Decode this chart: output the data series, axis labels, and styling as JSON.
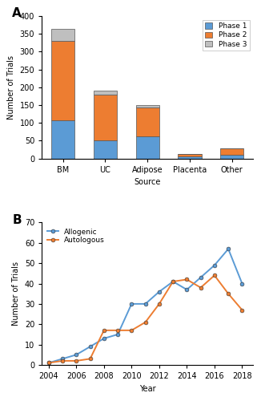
{
  "bar_categories": [
    "BM",
    "UC",
    "Adipose",
    "Placenta",
    "Other"
  ],
  "phase1": [
    108,
    50,
    62,
    5,
    10
  ],
  "phase2": [
    222,
    130,
    82,
    7,
    18
  ],
  "phase3": [
    35,
    10,
    7,
    1,
    0
  ],
  "color_phase1": "#5B9BD5",
  "color_phase2": "#ED7D31",
  "color_phase3": "#BFBFBF",
  "bar_edge_color": "#555555",
  "bar_width": 0.55,
  "ax_ylabel_bar": "Number of Trials",
  "ax_xlabel_bar": "Source",
  "years": [
    2004,
    2005,
    2006,
    2007,
    2008,
    2009,
    2010,
    2011,
    2012,
    2013,
    2014,
    2015,
    2016,
    2017,
    2018
  ],
  "allogenic": [
    1,
    3,
    5,
    9,
    13,
    15,
    30,
    30,
    36,
    41,
    37,
    43,
    49,
    57,
    40
  ],
  "autologous": [
    1,
    2,
    2,
    3,
    17,
    17,
    17,
    21,
    30,
    41,
    42,
    38,
    44,
    35,
    27
  ],
  "color_allogenic": "#5B9BD5",
  "color_autologous": "#ED7D31",
  "ax_ylabel_line": "Number of Trials",
  "ax_xlabel_line": "Year",
  "label_A": "A",
  "label_B": "B"
}
